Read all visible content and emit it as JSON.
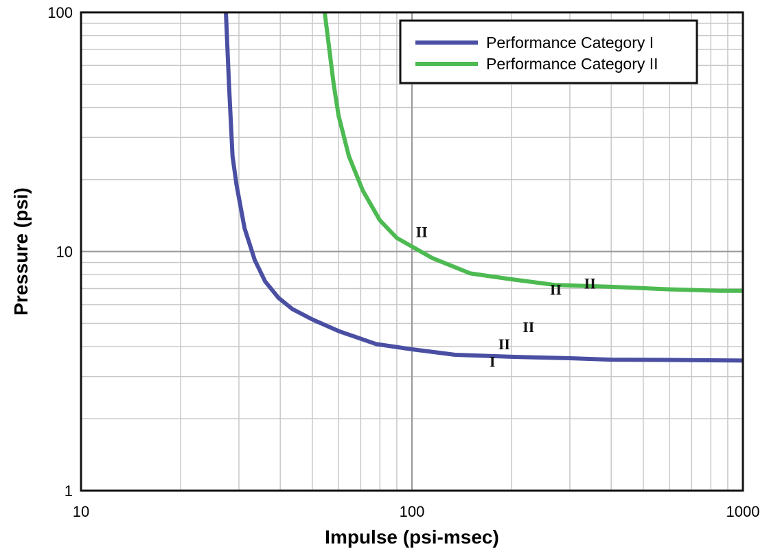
{
  "chart_data": {
    "type": "line",
    "xlabel": "Impulse (psi-msec)",
    "ylabel": "Pressure (psi)",
    "x_scale": "log",
    "y_scale": "log",
    "xlim": [
      10,
      1000
    ],
    "ylim": [
      1,
      100
    ],
    "x_ticks": [
      {
        "value": 10,
        "label": "10"
      },
      {
        "value": 100,
        "label": "100"
      },
      {
        "value": 1000,
        "label": "1000"
      }
    ],
    "y_ticks": [
      {
        "value": 1,
        "label": "1"
      },
      {
        "value": 10,
        "label": "10"
      },
      {
        "value": 100,
        "label": "100"
      }
    ],
    "grid": true,
    "legend_position": "top-right",
    "series": [
      {
        "name": "Performance Category I",
        "color": "#4a4fa3",
        "points": [
          [
            27.4,
            100
          ],
          [
            28.0,
            50
          ],
          [
            28.7,
            25
          ],
          [
            29.5,
            19
          ],
          [
            31.2,
            12.5
          ],
          [
            33.5,
            9.2
          ],
          [
            36,
            7.5
          ],
          [
            39.5,
            6.4
          ],
          [
            43.5,
            5.75
          ],
          [
            50,
            5.2
          ],
          [
            60,
            4.65
          ],
          [
            78,
            4.1
          ],
          [
            100,
            3.9
          ],
          [
            135,
            3.7
          ],
          [
            200,
            3.63
          ],
          [
            300,
            3.58
          ],
          [
            400,
            3.53
          ],
          [
            600,
            3.52
          ],
          [
            1000,
            3.5
          ]
        ]
      },
      {
        "name": "Performance Category II",
        "color": "#4dba52",
        "points": [
          [
            54.5,
            100
          ],
          [
            58,
            50
          ],
          [
            60,
            37
          ],
          [
            64.5,
            25
          ],
          [
            71,
            18
          ],
          [
            80,
            13.5
          ],
          [
            90,
            11.4
          ],
          [
            115,
            9.4
          ],
          [
            150,
            8.1
          ],
          [
            200,
            7.65
          ],
          [
            270,
            7.25
          ],
          [
            400,
            7.12
          ],
          [
            600,
            6.95
          ],
          [
            850,
            6.85
          ],
          [
            1000,
            6.85
          ]
        ]
      }
    ],
    "annotations": [
      {
        "text": "II",
        "x": 107,
        "y": 11.5
      },
      {
        "text": "II",
        "x": 345,
        "y": 7.0
      },
      {
        "text": "II",
        "x": 272,
        "y": 6.6
      },
      {
        "text": "II",
        "x": 225,
        "y": 4.6
      },
      {
        "text": "II",
        "x": 190,
        "y": 3.9
      },
      {
        "text": "I",
        "x": 175,
        "y": 3.3
      }
    ]
  }
}
